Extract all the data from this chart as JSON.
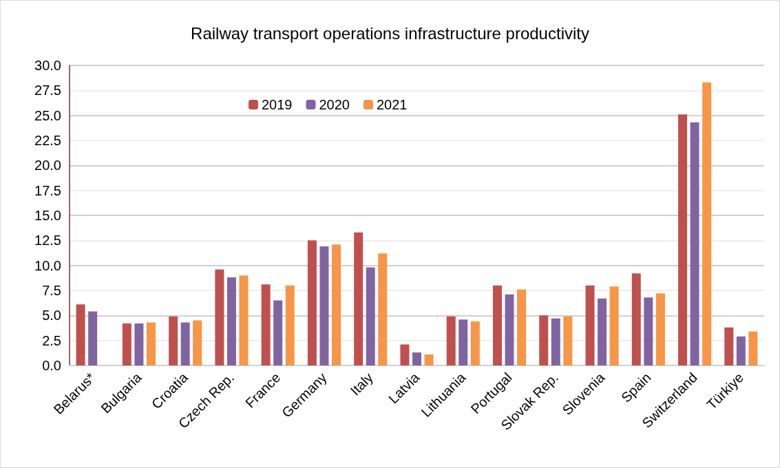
{
  "chart_data": {
    "type": "bar",
    "title": "Railway transport operations infrastructure productivity",
    "categories": [
      "Belarus*",
      "Bulgaria",
      "Croatia",
      "Czech Rep.",
      "France",
      "Germany",
      "Italy",
      "Latvia",
      "Lithuania",
      "Portugal",
      "Slovak Rep.",
      "Slovenia",
      "Spain",
      "Switzerland",
      "Türkiye"
    ],
    "series": [
      {
        "name": "2019",
        "color": "#c0504d",
        "values": [
          6.1,
          4.2,
          4.9,
          9.6,
          8.1,
          12.5,
          13.3,
          2.1,
          4.9,
          8.0,
          5.0,
          8.0,
          9.2,
          25.1,
          3.8
        ]
      },
      {
        "name": "2020",
        "color": "#8064a2",
        "values": [
          5.4,
          4.2,
          4.3,
          8.8,
          6.5,
          11.9,
          9.8,
          1.3,
          4.6,
          7.1,
          4.7,
          6.7,
          6.8,
          24.3,
          2.9
        ]
      },
      {
        "name": "2021",
        "color": "#f79646",
        "values": [
          null,
          4.3,
          4.5,
          9.0,
          8.0,
          12.1,
          11.2,
          1.1,
          4.4,
          7.6,
          4.9,
          7.9,
          7.2,
          28.3,
          3.4
        ]
      }
    ],
    "ylim": [
      0,
      30
    ],
    "yticks": [
      {
        "value": 0,
        "label": "0.0"
      },
      {
        "value": 2.5,
        "label": "2.5"
      },
      {
        "value": 5,
        "label": "5.0"
      },
      {
        "value": 7.5,
        "label": "7.5"
      },
      {
        "value": 10,
        "label": "10.0"
      },
      {
        "value": 12.5,
        "label": "12.5"
      },
      {
        "value": 15,
        "label": "15.0"
      },
      {
        "value": 17.5,
        "label": "17.5"
      },
      {
        "value": 20,
        "label": "20.0"
      },
      {
        "value": 22.5,
        "label": "22.5"
      },
      {
        "value": 25,
        "label": "25.0"
      },
      {
        "value": 27.5,
        "label": "27.5"
      },
      {
        "value": 30,
        "label": "30.0"
      }
    ],
    "grid": true,
    "legend": "top"
  }
}
